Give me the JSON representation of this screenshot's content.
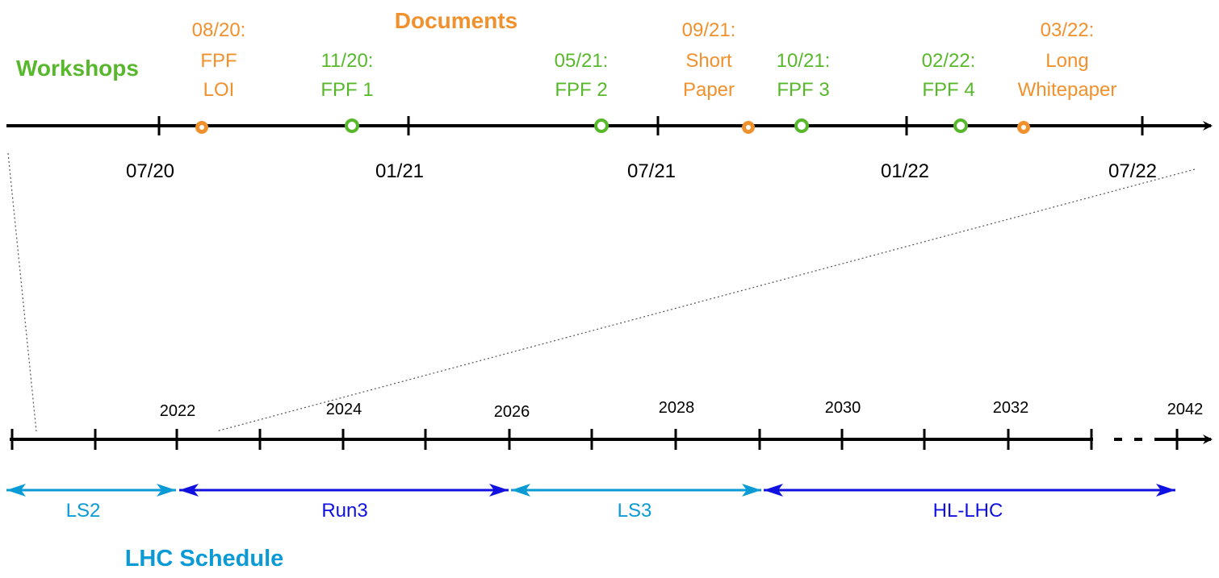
{
  "colors": {
    "workshop": "#58b82c",
    "document": "#f0912d",
    "axis": "#000000",
    "ls_period": "#0a9ad6",
    "run_period": "#1010e0"
  },
  "top_timeline": {
    "workshops_label": "Workshops",
    "documents_label": "Documents",
    "ticks": [
      "07/20",
      "01/21",
      "07/21",
      "01/22",
      "07/22"
    ],
    "workshops": [
      {
        "date": "11/20:",
        "name": "FPF 1"
      },
      {
        "date": "05/21:",
        "name": "FPF 2"
      },
      {
        "date": "10/21:",
        "name": "FPF 3"
      },
      {
        "date": "02/22:",
        "name": "FPF 4"
      }
    ],
    "documents": [
      {
        "date": "08/20:",
        "line1": "FPF",
        "line2": "LOI"
      },
      {
        "date": "09/21:",
        "line1": "Short",
        "line2": "Paper"
      },
      {
        "date": "03/22:",
        "line1": "Long",
        "line2": "Whitepaper"
      }
    ]
  },
  "bottom_timeline": {
    "title": "LHC Schedule",
    "years": [
      "2022",
      "2024",
      "2026",
      "2028",
      "2030",
      "2032",
      "2042"
    ],
    "periods": [
      {
        "name": "LS2",
        "kind": "ls",
        "from": "2020",
        "to": "2022"
      },
      {
        "name": "Run3",
        "kind": "run",
        "from": "2022",
        "to": "2026"
      },
      {
        "name": "LS3",
        "kind": "ls",
        "from": "2026",
        "to": "2029"
      },
      {
        "name": "HL-LHC",
        "kind": "run",
        "from": "2029",
        "to": "2042"
      }
    ]
  }
}
